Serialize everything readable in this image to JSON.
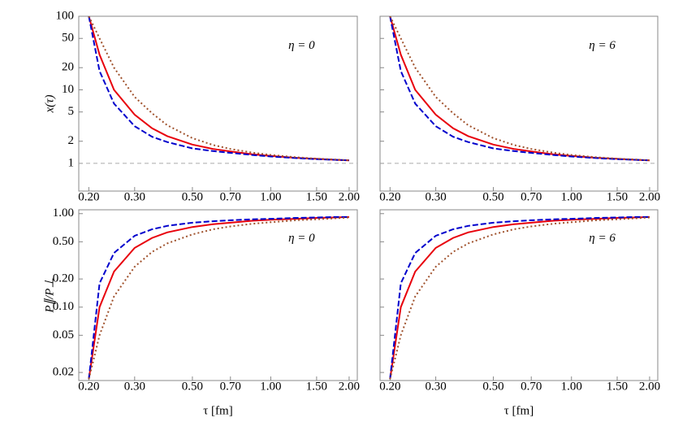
{
  "chart_data": [
    {
      "type": "line",
      "annotation": "η = 0",
      "ylabel": "x(τ)",
      "xscale": "log",
      "yscale": "log",
      "x": [
        0.2,
        0.22,
        0.25,
        0.3,
        0.35,
        0.4,
        0.5,
        0.6,
        0.7,
        0.85,
        1.0,
        1.25,
        1.5,
        1.75,
        2.0
      ],
      "series": [
        {
          "color": "#e8000b",
          "style": "solid",
          "values": [
            100,
            30,
            10,
            4.6,
            3.0,
            2.35,
            1.8,
            1.57,
            1.45,
            1.33,
            1.26,
            1.19,
            1.15,
            1.12,
            1.1
          ]
        },
        {
          "color": "#0000cc",
          "style": "dashed",
          "values": [
            100,
            18,
            6.5,
            3.2,
            2.3,
            1.95,
            1.6,
            1.47,
            1.39,
            1.3,
            1.24,
            1.18,
            1.14,
            1.12,
            1.1
          ]
        },
        {
          "color": "#a0522d",
          "style": "dotted",
          "values": [
            100,
            50,
            20,
            8,
            4.8,
            3.3,
            2.2,
            1.78,
            1.57,
            1.4,
            1.3,
            1.21,
            1.16,
            1.13,
            1.1
          ]
        }
      ],
      "hline": 1,
      "xlim": [
        0.183,
        2.15
      ],
      "ylim": [
        0.42,
        100
      ],
      "xticks": [
        {
          "value": 0.2,
          "label": "0.20"
        },
        {
          "value": 0.3,
          "label": "0.30"
        },
        {
          "value": 0.5,
          "label": "0.50"
        },
        {
          "value": 0.7,
          "label": "0.70"
        },
        {
          "value": 1,
          "label": "1.00"
        },
        {
          "value": 1.5,
          "label": "1.50"
        },
        {
          "value": 2,
          "label": "2.00"
        }
      ],
      "yticks": [
        1,
        2,
        5,
        10,
        20,
        50,
        100
      ]
    },
    {
      "type": "line",
      "annotation": "η = 6",
      "xscale": "log",
      "yscale": "log",
      "x": [
        0.2,
        0.22,
        0.25,
        0.3,
        0.35,
        0.4,
        0.5,
        0.6,
        0.7,
        0.85,
        1.0,
        1.25,
        1.5,
        1.75,
        2.0
      ],
      "series": [
        {
          "color": "#e8000b",
          "style": "solid",
          "values": [
            100,
            30,
            10,
            4.6,
            3.0,
            2.35,
            1.8,
            1.57,
            1.45,
            1.33,
            1.26,
            1.19,
            1.15,
            1.12,
            1.1
          ]
        },
        {
          "color": "#0000cc",
          "style": "dashed",
          "values": [
            100,
            18,
            6.5,
            3.2,
            2.3,
            1.95,
            1.6,
            1.47,
            1.39,
            1.3,
            1.24,
            1.18,
            1.14,
            1.12,
            1.1
          ]
        },
        {
          "color": "#a0522d",
          "style": "dotted",
          "values": [
            100,
            50,
            20,
            8,
            4.8,
            3.3,
            2.2,
            1.78,
            1.57,
            1.4,
            1.3,
            1.21,
            1.16,
            1.13,
            1.1
          ]
        }
      ],
      "hline": 1,
      "xlim": [
        0.183,
        2.15
      ],
      "ylim": [
        0.42,
        100
      ],
      "xticks": [
        {
          "value": 0.2,
          "label": "0.20"
        },
        {
          "value": 0.3,
          "label": "0.30"
        },
        {
          "value": 0.5,
          "label": "0.50"
        },
        {
          "value": 0.7,
          "label": "0.70"
        },
        {
          "value": 1,
          "label": "1.00"
        },
        {
          "value": 1.5,
          "label": "1.50"
        },
        {
          "value": 2,
          "label": "2.00"
        }
      ]
    },
    {
      "type": "line",
      "annotation": "η = 0",
      "ylabel": "P∥/P⊥",
      "xlabel": "τ [fm]",
      "xscale": "log",
      "yscale": "log",
      "x": [
        0.2,
        0.22,
        0.25,
        0.3,
        0.35,
        0.4,
        0.5,
        0.6,
        0.7,
        0.85,
        1.0,
        1.25,
        1.5,
        1.75,
        2.0
      ],
      "series": [
        {
          "color": "#e8000b",
          "style": "solid",
          "values": [
            0.017,
            0.1,
            0.24,
            0.43,
            0.55,
            0.63,
            0.72,
            0.77,
            0.8,
            0.84,
            0.86,
            0.88,
            0.9,
            0.91,
            0.92
          ]
        },
        {
          "color": "#0000cc",
          "style": "dashed",
          "values": [
            0.017,
            0.18,
            0.38,
            0.58,
            0.68,
            0.74,
            0.8,
            0.83,
            0.85,
            0.87,
            0.88,
            0.9,
            0.91,
            0.92,
            0.92
          ]
        },
        {
          "color": "#a0522d",
          "style": "dotted",
          "values": [
            0.017,
            0.05,
            0.13,
            0.27,
            0.39,
            0.48,
            0.6,
            0.68,
            0.73,
            0.78,
            0.81,
            0.85,
            0.87,
            0.89,
            0.91
          ]
        }
      ],
      "xlim": [
        0.183,
        2.15
      ],
      "ylim": [
        0.0164,
        1.1
      ],
      "xticks": [
        {
          "value": 0.2,
          "label": "0.20"
        },
        {
          "value": 0.3,
          "label": "0.30"
        },
        {
          "value": 0.5,
          "label": "0.50"
        },
        {
          "value": 0.7,
          "label": "0.70"
        },
        {
          "value": 1,
          "label": "1.00"
        },
        {
          "value": 1.5,
          "label": "1.50"
        },
        {
          "value": 2,
          "label": "2.00"
        }
      ],
      "yticks": [
        0.02,
        0.05,
        {
          "value": 0.1,
          "label": "0.10"
        },
        {
          "value": 0.2,
          "label": "0.20"
        },
        {
          "value": 0.5,
          "label": "0.50"
        },
        {
          "value": 1,
          "label": "1.00"
        }
      ]
    },
    {
      "type": "line",
      "annotation": "η = 6",
      "xlabel": "τ [fm]",
      "xscale": "log",
      "yscale": "log",
      "x": [
        0.2,
        0.22,
        0.25,
        0.3,
        0.35,
        0.4,
        0.5,
        0.6,
        0.7,
        0.85,
        1.0,
        1.25,
        1.5,
        1.75,
        2.0
      ],
      "series": [
        {
          "color": "#e8000b",
          "style": "solid",
          "values": [
            0.017,
            0.1,
            0.24,
            0.43,
            0.55,
            0.63,
            0.72,
            0.77,
            0.8,
            0.84,
            0.86,
            0.88,
            0.9,
            0.91,
            0.92
          ]
        },
        {
          "color": "#0000cc",
          "style": "dashed",
          "values": [
            0.017,
            0.18,
            0.38,
            0.58,
            0.68,
            0.74,
            0.8,
            0.83,
            0.85,
            0.87,
            0.88,
            0.9,
            0.91,
            0.92,
            0.92
          ]
        },
        {
          "color": "#a0522d",
          "style": "dotted",
          "values": [
            0.017,
            0.05,
            0.13,
            0.27,
            0.39,
            0.48,
            0.6,
            0.68,
            0.73,
            0.78,
            0.81,
            0.85,
            0.87,
            0.89,
            0.91
          ]
        }
      ],
      "xlim": [
        0.183,
        2.15
      ],
      "ylim": [
        0.0164,
        1.1
      ],
      "xticks": [
        {
          "value": 0.2,
          "label": "0.20"
        },
        {
          "value": 0.3,
          "label": "0.30"
        },
        {
          "value": 0.5,
          "label": "0.50"
        },
        {
          "value": 0.7,
          "label": "0.70"
        },
        {
          "value": 1,
          "label": "1.00"
        },
        {
          "value": 1.5,
          "label": "1.50"
        },
        {
          "value": 2,
          "label": "2.00"
        }
      ]
    }
  ]
}
